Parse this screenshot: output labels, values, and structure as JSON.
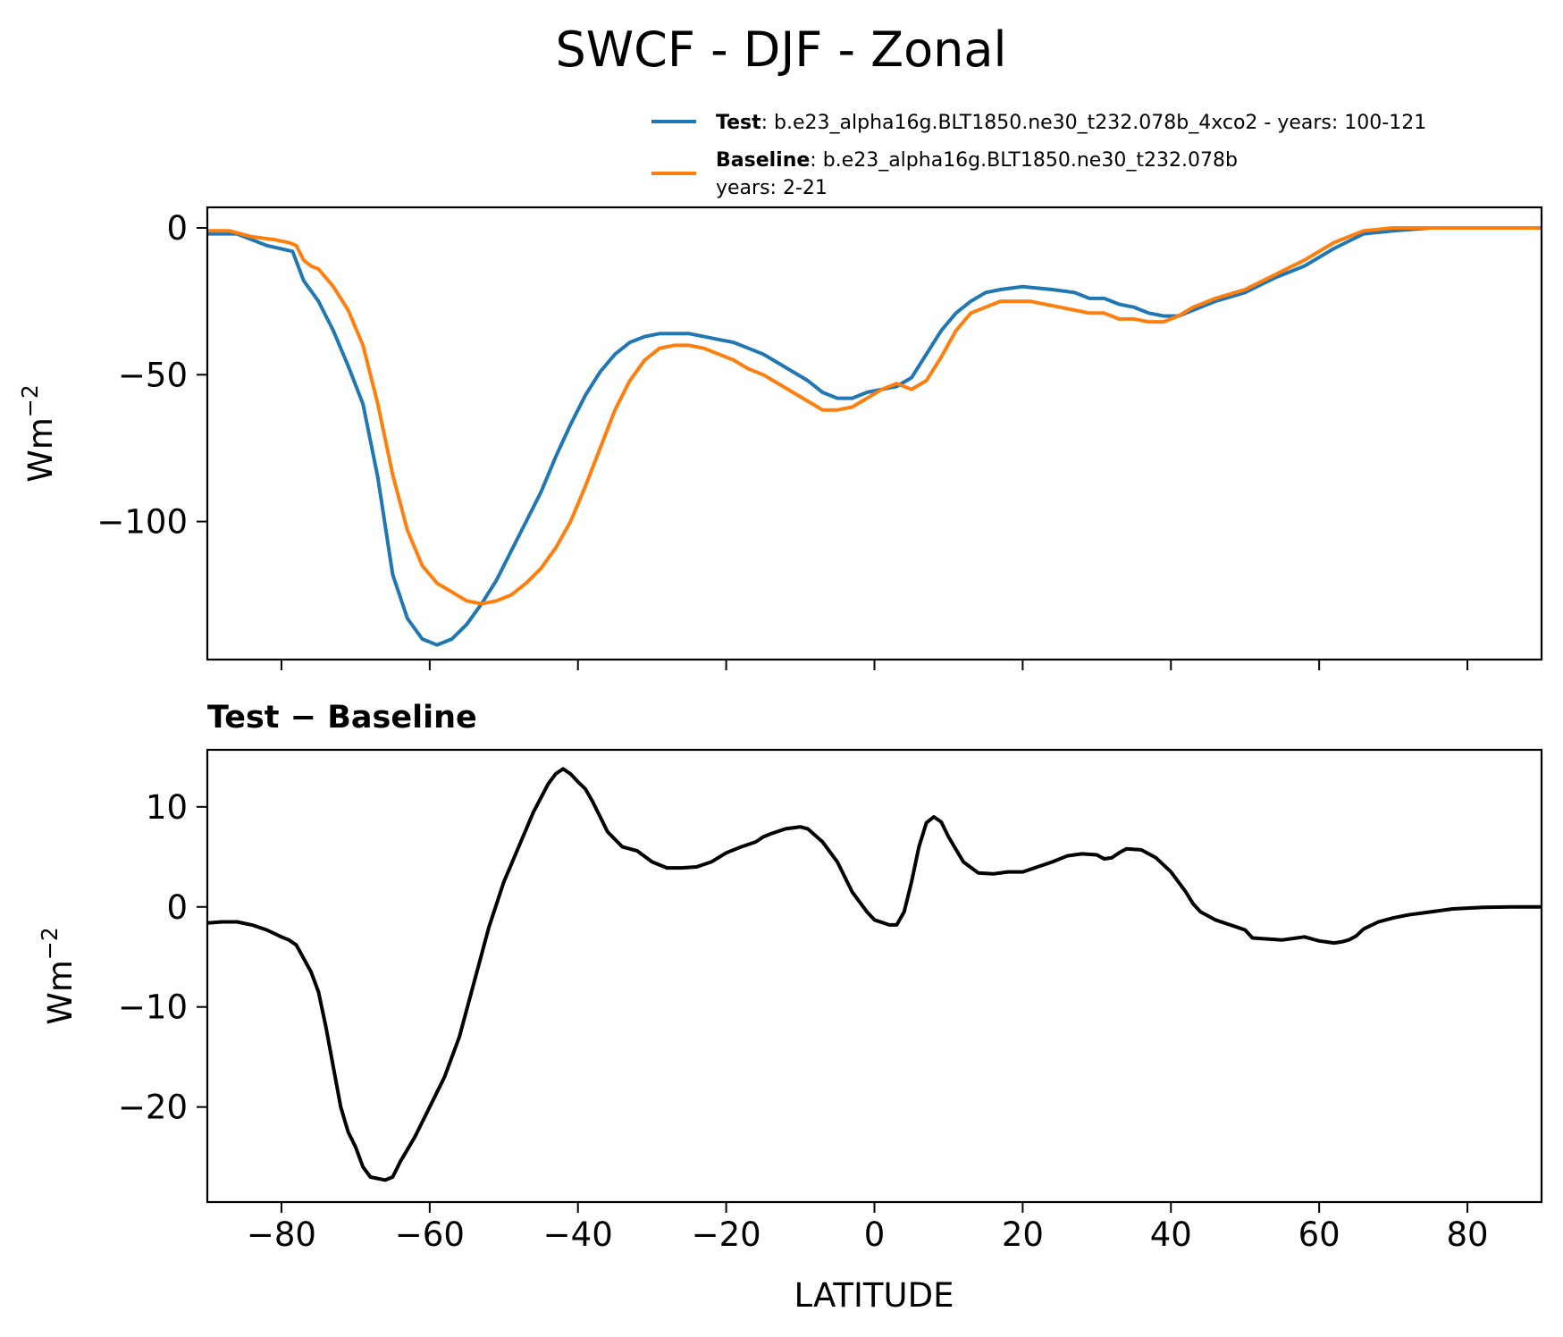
{
  "figure": {
    "title": "SWCF - DJF - Zonal"
  },
  "colors": {
    "test": "#1f77b4",
    "baseline": "#ff7f0e",
    "difference": "#000000",
    "axes": "#000000",
    "background": "#ffffff"
  },
  "legend": {
    "test": {
      "name": "Test",
      "text": ": b.e23_alpha16g.BLT1850.ne30_t232.078b_4xco2 - years: 100-121"
    },
    "baseline": {
      "name": "Baseline",
      "text": ": b.e23_alpha16g.BLT1850.ne30_t232.078b",
      "text2": "years: 2-21"
    }
  },
  "chart_data": [
    {
      "type": "line",
      "panel": "top",
      "title": "",
      "xlabel": "",
      "ylabel": "Wm",
      "ylabel_sup": "−2",
      "xlim": [
        -90,
        90
      ],
      "ylim": [
        -147,
        7
      ],
      "yticks": [
        0,
        -50,
        -100
      ],
      "ytick_labels": [
        "0",
        "−50",
        "−100"
      ],
      "xticks": [
        -80,
        -60,
        -40,
        -20,
        0,
        20,
        40,
        60,
        80
      ],
      "series": [
        {
          "name": "Test",
          "color": "#1f77b4",
          "points": [
            [
              -90,
              -2
            ],
            [
              -86,
              -2
            ],
            [
              -82,
              -6
            ],
            [
              -78.5,
              -8
            ],
            [
              -77,
              -18
            ],
            [
              -75,
              -25
            ],
            [
              -73,
              -35
            ],
            [
              -71,
              -47
            ],
            [
              -69,
              -60
            ],
            [
              -67,
              -85
            ],
            [
              -65,
              -118
            ],
            [
              -63,
              -133
            ],
            [
              -61,
              -140
            ],
            [
              -59,
              -142
            ],
            [
              -57,
              -140
            ],
            [
              -55,
              -135
            ],
            [
              -53,
              -128
            ],
            [
              -51,
              -120
            ],
            [
              -49,
              -110
            ],
            [
              -47,
              -100
            ],
            [
              -45,
              -90
            ],
            [
              -43,
              -78
            ],
            [
              -41,
              -67
            ],
            [
              -39,
              -57
            ],
            [
              -37,
              -49
            ],
            [
              -35,
              -43
            ],
            [
              -33,
              -39
            ],
            [
              -31,
              -37
            ],
            [
              -29,
              -36
            ],
            [
              -27,
              -36
            ],
            [
              -25,
              -36
            ],
            [
              -23,
              -37
            ],
            [
              -21,
              -38
            ],
            [
              -19,
              -39
            ],
            [
              -17,
              -41
            ],
            [
              -15,
              -43
            ],
            [
              -13,
              -46
            ],
            [
              -11,
              -49
            ],
            [
              -9,
              -52
            ],
            [
              -7,
              -56
            ],
            [
              -5,
              -58
            ],
            [
              -3,
              -58
            ],
            [
              -1,
              -56
            ],
            [
              1,
              -55
            ],
            [
              3,
              -54
            ],
            [
              5,
              -51
            ],
            [
              7,
              -43
            ],
            [
              9,
              -35
            ],
            [
              11,
              -29
            ],
            [
              13,
              -25
            ],
            [
              15,
              -22
            ],
            [
              17,
              -21
            ],
            [
              20,
              -20
            ],
            [
              24,
              -21
            ],
            [
              27,
              -22
            ],
            [
              29,
              -24
            ],
            [
              31,
              -24
            ],
            [
              33,
              -26
            ],
            [
              35,
              -27
            ],
            [
              37,
              -29
            ],
            [
              39,
              -30
            ],
            [
              41,
              -30
            ],
            [
              43,
              -28
            ],
            [
              46,
              -25
            ],
            [
              50,
              -22
            ],
            [
              54,
              -17
            ],
            [
              58,
              -13
            ],
            [
              62,
              -7
            ],
            [
              66,
              -2
            ],
            [
              70,
              -1
            ],
            [
              75,
              0
            ],
            [
              80,
              0
            ],
            [
              90,
              0
            ]
          ]
        },
        {
          "name": "Baseline",
          "color": "#ff7f0e",
          "points": [
            [
              -90,
              -1
            ],
            [
              -87,
              -1
            ],
            [
              -84,
              -3
            ],
            [
              -81,
              -4
            ],
            [
              -79,
              -5
            ],
            [
              -78,
              -6
            ],
            [
              -77,
              -11
            ],
            [
              -76,
              -13
            ],
            [
              -75,
              -14
            ],
            [
              -73,
              -20
            ],
            [
              -71,
              -28
            ],
            [
              -69,
              -40
            ],
            [
              -67,
              -60
            ],
            [
              -65,
              -84
            ],
            [
              -63,
              -103
            ],
            [
              -61,
              -115
            ],
            [
              -59,
              -121
            ],
            [
              -57,
              -124
            ],
            [
              -55,
              -127
            ],
            [
              -53,
              -128
            ],
            [
              -51,
              -127
            ],
            [
              -49,
              -125
            ],
            [
              -47,
              -121
            ],
            [
              -45,
              -116
            ],
            [
              -43,
              -109
            ],
            [
              -41,
              -100
            ],
            [
              -39,
              -88
            ],
            [
              -37,
              -75
            ],
            [
              -35,
              -62
            ],
            [
              -33,
              -52
            ],
            [
              -31,
              -45
            ],
            [
              -29,
              -41
            ],
            [
              -27,
              -40
            ],
            [
              -25,
              -40
            ],
            [
              -23,
              -41
            ],
            [
              -21,
              -43
            ],
            [
              -19,
              -45
            ],
            [
              -17,
              -48
            ],
            [
              -15,
              -50
            ],
            [
              -13,
              -53
            ],
            [
              -11,
              -56
            ],
            [
              -9,
              -59
            ],
            [
              -7,
              -62
            ],
            [
              -5,
              -62
            ],
            [
              -3,
              -61
            ],
            [
              -1,
              -58
            ],
            [
              1,
              -55
            ],
            [
              3,
              -53
            ],
            [
              5,
              -55
            ],
            [
              7,
              -52
            ],
            [
              9,
              -44
            ],
            [
              11,
              -35
            ],
            [
              13,
              -29
            ],
            [
              15,
              -27
            ],
            [
              17,
              -25
            ],
            [
              19,
              -25
            ],
            [
              21,
              -25
            ],
            [
              23,
              -26
            ],
            [
              25,
              -27
            ],
            [
              27,
              -28
            ],
            [
              29,
              -29
            ],
            [
              31,
              -29
            ],
            [
              33,
              -31
            ],
            [
              35,
              -31
            ],
            [
              37,
              -32
            ],
            [
              39,
              -32
            ],
            [
              41,
              -30
            ],
            [
              43,
              -27
            ],
            [
              46,
              -24
            ],
            [
              50,
              -21
            ],
            [
              54,
              -16
            ],
            [
              58,
              -11
            ],
            [
              62,
              -5
            ],
            [
              66,
              -1
            ],
            [
              70,
              0
            ],
            [
              75,
              0
            ],
            [
              80,
              0
            ],
            [
              90,
              0
            ]
          ]
        }
      ]
    },
    {
      "type": "line",
      "panel": "bottom",
      "title": "Test − Baseline",
      "xlabel": "LATITUDE",
      "ylabel": "Wm",
      "ylabel_sup": "−2",
      "xlim": [
        -90,
        90
      ],
      "ylim": [
        -29.5,
        15.7
      ],
      "yticks": [
        10,
        0,
        -10,
        -20
      ],
      "ytick_labels": [
        "10",
        "0",
        "−10",
        "−20"
      ],
      "xticks": [
        -80,
        -60,
        -40,
        -20,
        0,
        20,
        40,
        60,
        80
      ],
      "xtick_labels": [
        "−80",
        "−60",
        "−40",
        "−20",
        "0",
        "20",
        "40",
        "60",
        "80"
      ],
      "series": [
        {
          "name": "Test − Baseline",
          "color": "#000000",
          "points": [
            [
              -90,
              -1.6
            ],
            [
              -88,
              -1.5
            ],
            [
              -86,
              -1.5
            ],
            [
              -84,
              -1.8
            ],
            [
              -82,
              -2.3
            ],
            [
              -80,
              -3
            ],
            [
              -79,
              -3.3
            ],
            [
              -78,
              -3.8
            ],
            [
              -76,
              -6.5
            ],
            [
              -75,
              -8.5
            ],
            [
              -74,
              -12
            ],
            [
              -72,
              -20
            ],
            [
              -71,
              -22.5
            ],
            [
              -70,
              -24
            ],
            [
              -69,
              -26
            ],
            [
              -68,
              -27
            ],
            [
              -66,
              -27.3
            ],
            [
              -65,
              -27
            ],
            [
              -64,
              -25.5
            ],
            [
              -62,
              -23
            ],
            [
              -60,
              -20
            ],
            [
              -58,
              -17
            ],
            [
              -56,
              -13
            ],
            [
              -54,
              -7.5
            ],
            [
              -52,
              -2
            ],
            [
              -50,
              2.5
            ],
            [
              -48,
              6
            ],
            [
              -46,
              9.5
            ],
            [
              -44,
              12.3
            ],
            [
              -43,
              13.3
            ],
            [
              -42,
              13.8
            ],
            [
              -41,
              13.3
            ],
            [
              -40,
              12.5
            ],
            [
              -39,
              11.8
            ],
            [
              -38,
              10.5
            ],
            [
              -36,
              7.5
            ],
            [
              -34,
              6
            ],
            [
              -33,
              5.8
            ],
            [
              -32,
              5.6
            ],
            [
              -30,
              4.5
            ],
            [
              -28,
              3.9
            ],
            [
              -26,
              3.9
            ],
            [
              -24,
              4
            ],
            [
              -22,
              4.5
            ],
            [
              -20,
              5.4
            ],
            [
              -18,
              6
            ],
            [
              -16,
              6.5
            ],
            [
              -15,
              7
            ],
            [
              -14,
              7.3
            ],
            [
              -12,
              7.8
            ],
            [
              -10,
              8
            ],
            [
              -9,
              7.8
            ],
            [
              -7,
              6.5
            ],
            [
              -5,
              4.5
            ],
            [
              -3,
              1.5
            ],
            [
              -1,
              -0.5
            ],
            [
              0,
              -1.3
            ],
            [
              2,
              -1.8
            ],
            [
              3,
              -1.8
            ],
            [
              4,
              -0.5
            ],
            [
              5,
              2.5
            ],
            [
              6,
              6
            ],
            [
              7,
              8.4
            ],
            [
              8,
              9
            ],
            [
              9,
              8.5
            ],
            [
              10,
              7
            ],
            [
              12,
              4.5
            ],
            [
              14,
              3.4
            ],
            [
              16,
              3.3
            ],
            [
              18,
              3.5
            ],
            [
              20,
              3.5
            ],
            [
              22,
              4
            ],
            [
              24,
              4.5
            ],
            [
              26,
              5.1
            ],
            [
              28,
              5.3
            ],
            [
              30,
              5.2
            ],
            [
              31,
              4.8
            ],
            [
              32,
              4.9
            ],
            [
              33,
              5.4
            ],
            [
              34,
              5.8
            ],
            [
              36,
              5.7
            ],
            [
              38,
              4.9
            ],
            [
              40,
              3.5
            ],
            [
              42,
              1.5
            ],
            [
              43,
              0.3
            ],
            [
              44,
              -0.5
            ],
            [
              46,
              -1.3
            ],
            [
              48,
              -1.8
            ],
            [
              50,
              -2.3
            ],
            [
              51,
              -3.1
            ],
            [
              53,
              -3.2
            ],
            [
              55,
              -3.3
            ],
            [
              56,
              -3.2
            ],
            [
              58,
              -3
            ],
            [
              60,
              -3.4
            ],
            [
              62,
              -3.6
            ],
            [
              63,
              -3.5
            ],
            [
              64,
              -3.3
            ],
            [
              65,
              -2.9
            ],
            [
              66,
              -2.2
            ],
            [
              68,
              -1.5
            ],
            [
              70,
              -1.1
            ],
            [
              72,
              -0.8
            ],
            [
              75,
              -0.5
            ],
            [
              78,
              -0.2
            ],
            [
              82,
              -0.05
            ],
            [
              86,
              0
            ],
            [
              90,
              0
            ]
          ]
        }
      ]
    }
  ]
}
